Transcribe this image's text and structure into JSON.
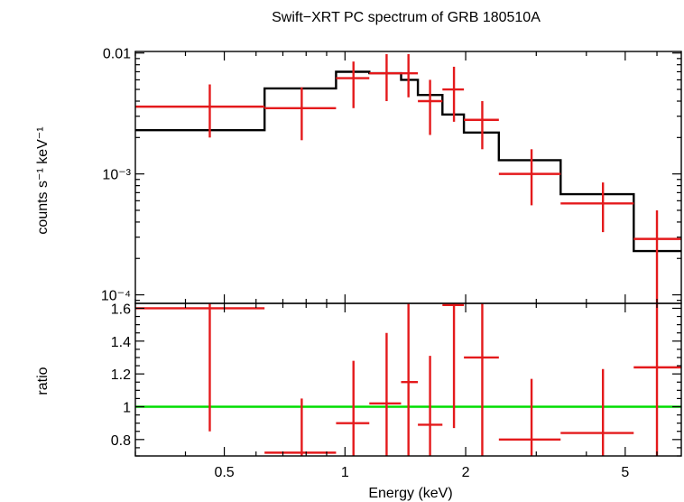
{
  "chart_data": {
    "type": "scatter",
    "title": "Swift−XRT PC spectrum of GRB 180510A",
    "xlabel": "Energy (keV)",
    "xscale": "log",
    "xlim": [
      0.3,
      6.9
    ],
    "x_ticks": [
      {
        "value": 0.5,
        "label": "0.5"
      },
      {
        "value": 1,
        "label": "1"
      },
      {
        "value": 2,
        "label": "2"
      },
      {
        "value": 5,
        "label": "5"
      }
    ],
    "colors": {
      "data": "#e41a1c",
      "model": "#000000",
      "unity": "#00dd00",
      "axes": "#000000"
    },
    "panels": [
      {
        "name": "spectrum",
        "ylabel": "counts s⁻¹ keV⁻¹",
        "yscale": "log",
        "ylim": [
          8.5e-05,
          0.0103
        ],
        "y_ticks": [
          {
            "value": 0.01,
            "label": "0.01"
          },
          {
            "value": 0.001,
            "label": "10⁻³"
          },
          {
            "value": 0.0001,
            "label": "10⁻⁴"
          }
        ],
        "series": [
          {
            "name": "data",
            "points": [
              {
                "x": 0.46,
                "xlo": 0.3,
                "xhi": 0.63,
                "y": 0.0036,
                "ylo": 0.002,
                "yhi": 0.0055
              },
              {
                "x": 0.78,
                "xlo": 0.63,
                "xhi": 0.95,
                "y": 0.0035,
                "ylo": 0.0019,
                "yhi": 0.0052
              },
              {
                "x": 1.05,
                "xlo": 0.95,
                "xhi": 1.15,
                "y": 0.0062,
                "ylo": 0.0035,
                "yhi": 0.0085
              },
              {
                "x": 1.27,
                "xlo": 1.15,
                "xhi": 1.38,
                "y": 0.0068,
                "ylo": 0.004,
                "yhi": 0.0098
              },
              {
                "x": 1.44,
                "xlo": 1.38,
                "xhi": 1.52,
                "y": 0.0068,
                "ylo": 0.0043,
                "yhi": 0.0098
              },
              {
                "x": 1.63,
                "xlo": 1.52,
                "xhi": 1.75,
                "y": 0.004,
                "ylo": 0.0021,
                "yhi": 0.006
              },
              {
                "x": 1.87,
                "xlo": 1.75,
                "xhi": 1.98,
                "y": 0.005,
                "ylo": 0.0027,
                "yhi": 0.0077
              },
              {
                "x": 2.2,
                "xlo": 1.98,
                "xhi": 2.42,
                "y": 0.0028,
                "ylo": 0.0016,
                "yhi": 0.004
              },
              {
                "x": 2.92,
                "xlo": 2.42,
                "xhi": 3.45,
                "y": 0.001,
                "ylo": 0.00055,
                "yhi": 0.0016
              },
              {
                "x": 4.4,
                "xlo": 3.45,
                "xhi": 5.25,
                "y": 0.00057,
                "ylo": 0.00033,
                "yhi": 0.00085
              },
              {
                "x": 6.0,
                "xlo": 5.25,
                "xhi": 6.9,
                "y": 0.00029,
                "ylo": 8e-05,
                "yhi": 0.0005
              }
            ]
          },
          {
            "name": "model",
            "steps": [
              {
                "xlo": 0.3,
                "xhi": 0.63,
                "y": 0.0023
              },
              {
                "xlo": 0.63,
                "xhi": 0.95,
                "y": 0.0051
              },
              {
                "xlo": 0.95,
                "xhi": 1.15,
                "y": 0.007
              },
              {
                "xlo": 1.15,
                "xhi": 1.38,
                "y": 0.0068
              },
              {
                "xlo": 1.38,
                "xhi": 1.52,
                "y": 0.006
              },
              {
                "xlo": 1.52,
                "xhi": 1.75,
                "y": 0.0045
              },
              {
                "xlo": 1.75,
                "xhi": 1.98,
                "y": 0.0031
              },
              {
                "xlo": 1.98,
                "xhi": 2.42,
                "y": 0.0022
              },
              {
                "xlo": 2.42,
                "xhi": 3.45,
                "y": 0.0013
              },
              {
                "xlo": 3.45,
                "xhi": 5.25,
                "y": 0.00068
              },
              {
                "xlo": 5.25,
                "xhi": 6.9,
                "y": 0.00023
              }
            ]
          }
        ]
      },
      {
        "name": "ratio",
        "ylabel": "ratio",
        "yscale": "linear",
        "ylim": [
          0.7,
          1.63
        ],
        "y_ticks": [
          {
            "value": 0.8,
            "label": "0.8"
          },
          {
            "value": 1.0,
            "label": "1"
          },
          {
            "value": 1.2,
            "label": "1.2"
          },
          {
            "value": 1.4,
            "label": "1.4"
          },
          {
            "value": 1.6,
            "label": "1.6"
          }
        ],
        "reference_line": 1.0,
        "series": [
          {
            "name": "data",
            "points": [
              {
                "x": 0.46,
                "xlo": 0.3,
                "xhi": 0.63,
                "y": 1.6,
                "ylo": 0.85,
                "yhi": 1.63
              },
              {
                "x": 0.78,
                "xlo": 0.63,
                "xhi": 0.95,
                "y": 0.72,
                "ylo": 0.7,
                "yhi": 1.05
              },
              {
                "x": 1.05,
                "xlo": 0.95,
                "xhi": 1.15,
                "y": 0.9,
                "ylo": 0.7,
                "yhi": 1.28
              },
              {
                "x": 1.27,
                "xlo": 1.15,
                "xhi": 1.38,
                "y": 1.02,
                "ylo": 0.7,
                "yhi": 1.45
              },
              {
                "x": 1.44,
                "xlo": 1.38,
                "xhi": 1.52,
                "y": 1.15,
                "ylo": 0.7,
                "yhi": 1.63
              },
              {
                "x": 1.63,
                "xlo": 1.52,
                "xhi": 1.75,
                "y": 0.89,
                "ylo": 0.7,
                "yhi": 1.31
              },
              {
                "x": 1.87,
                "xlo": 1.75,
                "xhi": 1.98,
                "y": 1.62,
                "ylo": 0.87,
                "yhi": 1.63
              },
              {
                "x": 2.2,
                "xlo": 1.98,
                "xhi": 2.42,
                "y": 1.3,
                "ylo": 0.7,
                "yhi": 1.63
              },
              {
                "x": 2.92,
                "xlo": 2.42,
                "xhi": 3.45,
                "y": 0.8,
                "ylo": 0.7,
                "yhi": 1.17
              },
              {
                "x": 4.4,
                "xlo": 3.45,
                "xhi": 5.25,
                "y": 0.84,
                "ylo": 0.7,
                "yhi": 1.23
              },
              {
                "x": 6.0,
                "xlo": 5.25,
                "xhi": 6.9,
                "y": 1.24,
                "ylo": 0.7,
                "yhi": 1.63
              }
            ]
          }
        ]
      }
    ]
  }
}
